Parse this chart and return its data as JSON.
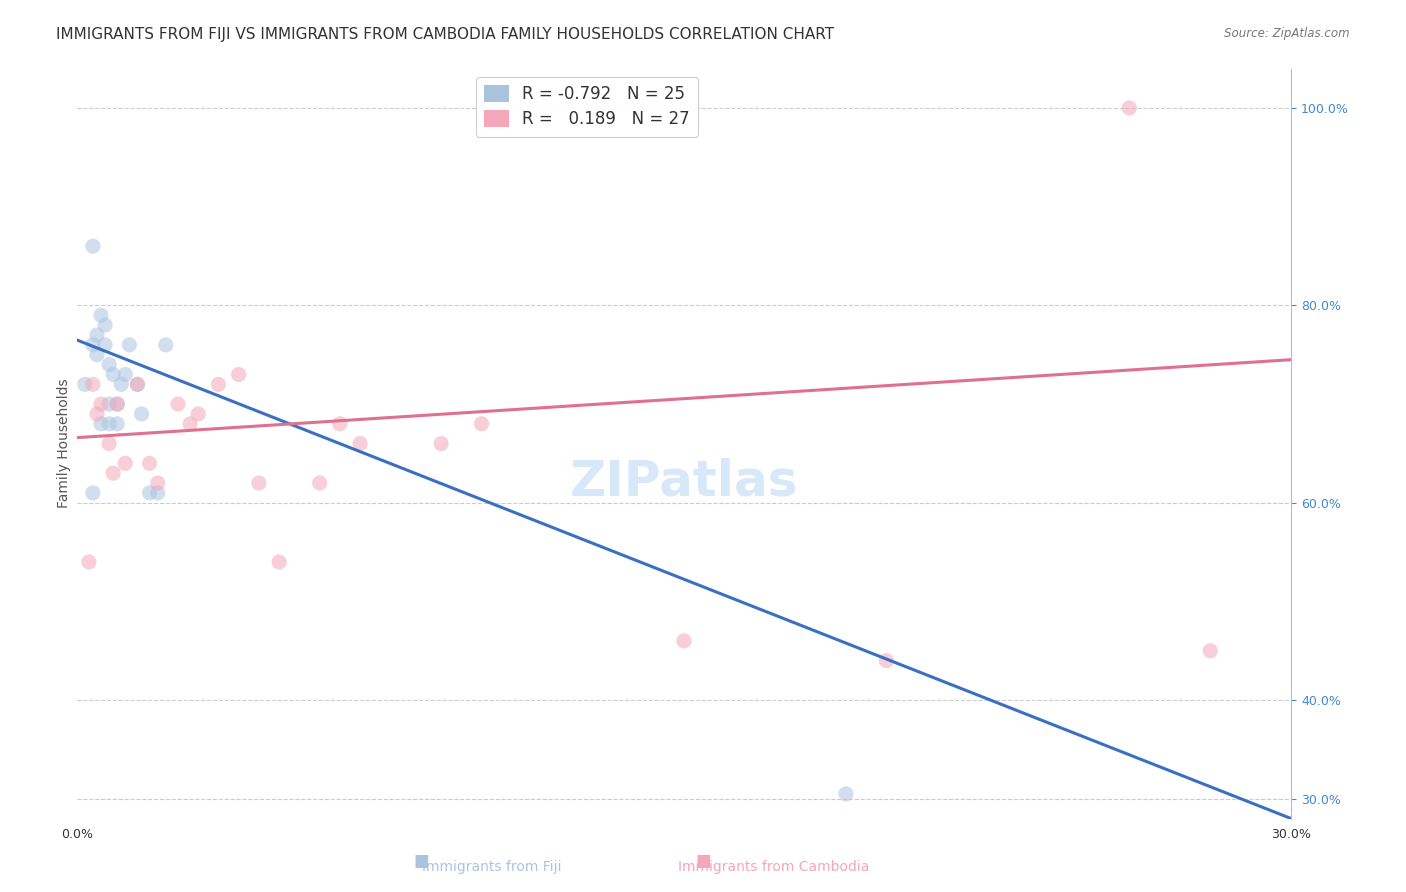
{
  "title": "IMMIGRANTS FROM FIJI VS IMMIGRANTS FROM CAMBODIA FAMILY HOUSEHOLDS CORRELATION CHART",
  "source": "Source: ZipAtlas.com",
  "ylabel": "Family Households",
  "xlabel_bottom": "",
  "x_min": 0.0,
  "x_max": 0.3,
  "y_min": 0.28,
  "y_max": 1.04,
  "right_yticks": [
    0.3,
    0.4,
    0.6,
    0.8,
    1.0
  ],
  "right_yticklabels": [
    "30.0%",
    "40.0%",
    "60.0%",
    "80.0%",
    "100.0%"
  ],
  "x_ticks": [
    0.0,
    0.05,
    0.1,
    0.15,
    0.2,
    0.25,
    0.3
  ],
  "x_ticklabels": [
    "0.0%",
    "",
    "",
    "",
    "",
    "",
    "30.0%"
  ],
  "watermark": "ZIPatlas",
  "fiji_color": "#aac4e0",
  "cambodia_color": "#f4a7b9",
  "fiji_line_color": "#3a6fc4",
  "cambodia_line_color": "#e07090",
  "fiji_R": -0.792,
  "fiji_N": 25,
  "cambodia_R": 0.189,
  "cambodia_N": 27,
  "fiji_scatter_x": [
    0.002,
    0.004,
    0.005,
    0.005,
    0.006,
    0.007,
    0.007,
    0.008,
    0.008,
    0.009,
    0.01,
    0.01,
    0.011,
    0.012,
    0.013,
    0.015,
    0.016,
    0.018,
    0.02,
    0.022,
    0.008,
    0.006,
    0.004,
    0.19,
    0.004
  ],
  "fiji_scatter_y": [
    0.72,
    0.76,
    0.77,
    0.75,
    0.79,
    0.78,
    0.76,
    0.74,
    0.7,
    0.73,
    0.7,
    0.68,
    0.72,
    0.73,
    0.76,
    0.72,
    0.69,
    0.61,
    0.61,
    0.76,
    0.68,
    0.68,
    0.86,
    0.305,
    0.61
  ],
  "cambodia_scatter_x": [
    0.004,
    0.005,
    0.006,
    0.008,
    0.009,
    0.01,
    0.012,
    0.015,
    0.018,
    0.02,
    0.025,
    0.028,
    0.03,
    0.035,
    0.04,
    0.045,
    0.05,
    0.06,
    0.065,
    0.07,
    0.09,
    0.1,
    0.15,
    0.2,
    0.26,
    0.28,
    0.003
  ],
  "cambodia_scatter_y": [
    0.72,
    0.69,
    0.7,
    0.66,
    0.63,
    0.7,
    0.64,
    0.72,
    0.64,
    0.62,
    0.7,
    0.68,
    0.69,
    0.72,
    0.73,
    0.62,
    0.54,
    0.62,
    0.68,
    0.66,
    0.66,
    0.68,
    0.46,
    0.44,
    1.0,
    0.45,
    0.54
  ],
  "fiji_line_x0": 0.0,
  "fiji_line_y0": 0.765,
  "fiji_line_x1": 0.3,
  "fiji_line_y1": 0.28,
  "cambodia_line_x0": 0.0,
  "cambodia_line_y0": 0.666,
  "cambodia_line_x1": 0.3,
  "cambodia_line_y1": 0.745,
  "background_color": "#ffffff",
  "grid_color": "#cccccc",
  "title_fontsize": 11,
  "axis_label_fontsize": 10,
  "tick_fontsize": 9,
  "legend_fontsize": 12,
  "watermark_fontsize": 36,
  "watermark_color": "#d0e4f7",
  "scatter_size": 120,
  "scatter_alpha": 0.55
}
